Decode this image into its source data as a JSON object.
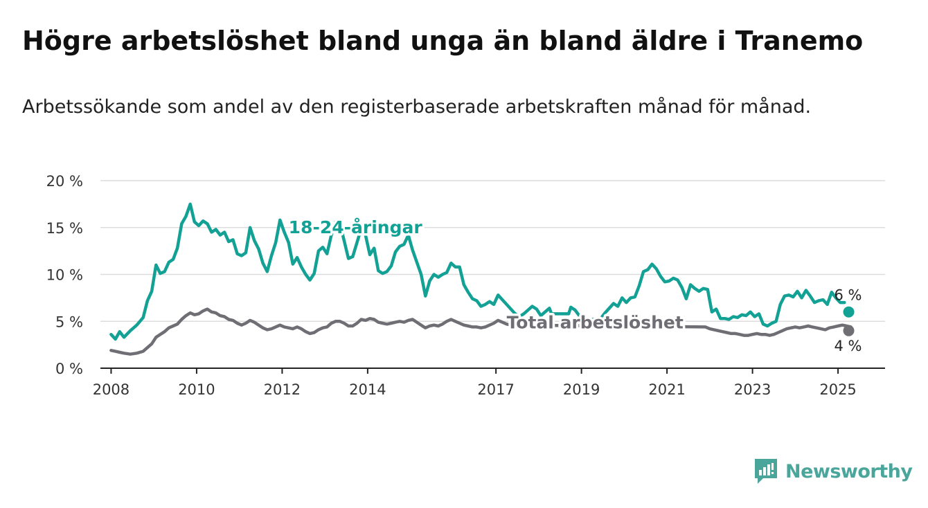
{
  "title": "Högre arbetslöshet bland unga än bland äldre i Tranemo",
  "subtitle": "Arbetssökande som andel av den registerbaserade arbetskraften månad för månad.",
  "brand": {
    "name": "Newsworthy",
    "icon": "newsworthy-logo-icon",
    "color": "#4aa69a"
  },
  "chart_data": {
    "type": "line",
    "y_ticks": [
      "0 %",
      "5 %",
      "10 %",
      "15 %",
      "20 %"
    ],
    "y_tick_values": [
      0,
      5,
      10,
      15,
      20
    ],
    "ylim": [
      0,
      20
    ],
    "x_ticks": [
      "2008",
      "2010",
      "2012",
      "2014",
      "2017",
      "2019",
      "2021",
      "2023",
      "2025"
    ],
    "x_tick_values": [
      2008,
      2010,
      2012,
      2014,
      2017,
      2019,
      2021,
      2023,
      2025
    ],
    "xlim": [
      2007.75,
      2026.1
    ],
    "grid": true,
    "series": [
      {
        "name": "18-24-åringar",
        "color": "#13a195",
        "end_label": "6 %",
        "points": [
          [
            2008.0,
            3.6
          ],
          [
            2008.1,
            3.1
          ],
          [
            2008.2,
            3.9
          ],
          [
            2008.3,
            3.3
          ],
          [
            2008.45,
            4.0
          ],
          [
            2008.6,
            4.6
          ],
          [
            2008.75,
            5.4
          ],
          [
            2008.85,
            7.2
          ],
          [
            2008.95,
            8.2
          ],
          [
            2009.05,
            11.0
          ],
          [
            2009.15,
            10.1
          ],
          [
            2009.25,
            10.3
          ],
          [
            2009.35,
            11.3
          ],
          [
            2009.45,
            11.6
          ],
          [
            2009.55,
            12.8
          ],
          [
            2009.65,
            15.4
          ],
          [
            2009.75,
            16.2
          ],
          [
            2009.85,
            17.5
          ],
          [
            2009.95,
            15.6
          ],
          [
            2010.05,
            15.2
          ],
          [
            2010.15,
            15.7
          ],
          [
            2010.25,
            15.4
          ],
          [
            2010.35,
            14.5
          ],
          [
            2010.45,
            14.8
          ],
          [
            2010.55,
            14.2
          ],
          [
            2010.65,
            14.5
          ],
          [
            2010.75,
            13.5
          ],
          [
            2010.85,
            13.7
          ],
          [
            2010.95,
            12.2
          ],
          [
            2011.05,
            12.0
          ],
          [
            2011.15,
            12.3
          ],
          [
            2011.25,
            15.0
          ],
          [
            2011.35,
            13.6
          ],
          [
            2011.45,
            12.7
          ],
          [
            2011.55,
            11.2
          ],
          [
            2011.65,
            10.3
          ],
          [
            2011.75,
            12.0
          ],
          [
            2011.85,
            13.4
          ],
          [
            2011.95,
            15.8
          ],
          [
            2012.05,
            14.5
          ],
          [
            2012.15,
            13.4
          ],
          [
            2012.25,
            11.1
          ],
          [
            2012.35,
            11.8
          ],
          [
            2012.45,
            10.8
          ],
          [
            2012.55,
            10.0
          ],
          [
            2012.65,
            9.4
          ],
          [
            2012.75,
            10.1
          ],
          [
            2012.85,
            12.5
          ],
          [
            2012.95,
            12.9
          ],
          [
            2013.05,
            12.2
          ],
          [
            2013.15,
            14.2
          ],
          [
            2013.25,
            15.6
          ],
          [
            2013.35,
            15.4
          ],
          [
            2013.45,
            13.6
          ],
          [
            2013.55,
            11.7
          ],
          [
            2013.65,
            11.9
          ],
          [
            2013.75,
            13.4
          ],
          [
            2013.85,
            14.9
          ],
          [
            2013.95,
            14.2
          ],
          [
            2014.05,
            12.1
          ],
          [
            2014.15,
            12.8
          ],
          [
            2014.25,
            10.4
          ],
          [
            2014.35,
            10.1
          ],
          [
            2014.45,
            10.3
          ],
          [
            2014.55,
            10.9
          ],
          [
            2014.65,
            12.4
          ],
          [
            2014.75,
            13.0
          ],
          [
            2014.85,
            13.2
          ],
          [
            2014.95,
            14.2
          ],
          [
            2015.05,
            12.6
          ],
          [
            2015.15,
            11.3
          ],
          [
            2015.25,
            10.0
          ],
          [
            2015.35,
            7.7
          ],
          [
            2015.45,
            9.3
          ],
          [
            2015.55,
            10.0
          ],
          [
            2015.65,
            9.7
          ],
          [
            2015.75,
            10.0
          ],
          [
            2015.85,
            10.2
          ],
          [
            2015.95,
            11.2
          ],
          [
            2016.05,
            10.8
          ],
          [
            2016.15,
            10.8
          ],
          [
            2016.25,
            8.9
          ],
          [
            2016.35,
            8.1
          ],
          [
            2016.45,
            7.4
          ],
          [
            2016.55,
            7.2
          ],
          [
            2016.65,
            6.6
          ],
          [
            2016.75,
            6.8
          ],
          [
            2016.85,
            7.1
          ],
          [
            2016.95,
            6.8
          ],
          [
            2017.05,
            7.8
          ],
          [
            2017.15,
            7.3
          ],
          [
            2017.25,
            6.8
          ],
          [
            2017.35,
            6.3
          ],
          [
            2017.45,
            5.8
          ],
          [
            2017.55,
            5.5
          ],
          [
            2017.65,
            5.8
          ],
          [
            2017.75,
            6.2
          ],
          [
            2017.85,
            6.6
          ],
          [
            2017.95,
            6.3
          ],
          [
            2018.05,
            5.6
          ],
          [
            2018.15,
            6.0
          ],
          [
            2018.25,
            6.4
          ],
          [
            2018.3,
            5.8
          ],
          [
            2018.7,
            5.8
          ],
          [
            2018.75,
            6.5
          ],
          [
            2018.85,
            6.2
          ],
          [
            2018.95,
            5.6
          ],
          [
            2019.05,
            5.1
          ],
          [
            2019.45,
            5.3
          ],
          [
            2019.55,
            5.9
          ],
          [
            2019.65,
            6.4
          ],
          [
            2019.75,
            6.9
          ],
          [
            2019.85,
            6.6
          ],
          [
            2019.95,
            7.5
          ],
          [
            2020.05,
            7.0
          ],
          [
            2020.15,
            7.5
          ],
          [
            2020.25,
            7.6
          ],
          [
            2020.35,
            8.8
          ],
          [
            2020.45,
            10.3
          ],
          [
            2020.55,
            10.5
          ],
          [
            2020.65,
            11.1
          ],
          [
            2020.75,
            10.6
          ],
          [
            2020.85,
            9.8
          ],
          [
            2020.95,
            9.2
          ],
          [
            2021.05,
            9.3
          ],
          [
            2021.15,
            9.6
          ],
          [
            2021.25,
            9.4
          ],
          [
            2021.35,
            8.6
          ],
          [
            2021.45,
            7.4
          ],
          [
            2021.55,
            8.9
          ],
          [
            2021.65,
            8.5
          ],
          [
            2021.75,
            8.2
          ],
          [
            2021.85,
            8.5
          ],
          [
            2021.95,
            8.4
          ],
          [
            2022.05,
            6.0
          ],
          [
            2022.15,
            6.3
          ],
          [
            2022.25,
            5.3
          ],
          [
            2022.35,
            5.3
          ],
          [
            2022.45,
            5.2
          ],
          [
            2022.55,
            5.5
          ],
          [
            2022.65,
            5.4
          ],
          [
            2022.75,
            5.7
          ],
          [
            2022.85,
            5.6
          ],
          [
            2022.95,
            6.0
          ],
          [
            2023.05,
            5.5
          ],
          [
            2023.15,
            5.8
          ],
          [
            2023.25,
            4.7
          ],
          [
            2023.35,
            4.5
          ],
          [
            2023.45,
            4.8
          ],
          [
            2023.55,
            5.0
          ],
          [
            2023.65,
            6.8
          ],
          [
            2023.75,
            7.7
          ],
          [
            2023.85,
            7.8
          ],
          [
            2023.95,
            7.6
          ],
          [
            2024.05,
            8.2
          ],
          [
            2024.15,
            7.5
          ],
          [
            2024.25,
            8.3
          ],
          [
            2024.35,
            7.7
          ],
          [
            2024.45,
            7.0
          ],
          [
            2024.55,
            7.2
          ],
          [
            2024.65,
            7.3
          ],
          [
            2024.75,
            6.8
          ],
          [
            2024.85,
            8.1
          ],
          [
            2024.95,
            7.5
          ],
          [
            2025.05,
            7.0
          ],
          [
            2025.15,
            7.0
          ]
        ]
      },
      {
        "name": "Total arbetslöshet",
        "color": "#6f6e74",
        "end_label": "4 %",
        "points": [
          [
            2008.0,
            1.9
          ],
          [
            2008.1,
            1.8
          ],
          [
            2008.2,
            1.7
          ],
          [
            2008.3,
            1.6
          ],
          [
            2008.45,
            1.5
          ],
          [
            2008.6,
            1.6
          ],
          [
            2008.75,
            1.8
          ],
          [
            2008.85,
            2.2
          ],
          [
            2008.95,
            2.6
          ],
          [
            2009.05,
            3.3
          ],
          [
            2009.15,
            3.6
          ],
          [
            2009.25,
            3.9
          ],
          [
            2009.35,
            4.3
          ],
          [
            2009.45,
            4.5
          ],
          [
            2009.55,
            4.7
          ],
          [
            2009.65,
            5.2
          ],
          [
            2009.75,
            5.6
          ],
          [
            2009.85,
            5.9
          ],
          [
            2009.95,
            5.7
          ],
          [
            2010.05,
            5.8
          ],
          [
            2010.15,
            6.1
          ],
          [
            2010.25,
            6.3
          ],
          [
            2010.35,
            6.0
          ],
          [
            2010.45,
            5.9
          ],
          [
            2010.55,
            5.6
          ],
          [
            2010.65,
            5.5
          ],
          [
            2010.75,
            5.2
          ],
          [
            2010.85,
            5.1
          ],
          [
            2010.95,
            4.8
          ],
          [
            2011.05,
            4.6
          ],
          [
            2011.15,
            4.8
          ],
          [
            2011.25,
            5.1
          ],
          [
            2011.35,
            4.9
          ],
          [
            2011.45,
            4.6
          ],
          [
            2011.55,
            4.3
          ],
          [
            2011.65,
            4.1
          ],
          [
            2011.75,
            4.2
          ],
          [
            2011.85,
            4.4
          ],
          [
            2011.95,
            4.6
          ],
          [
            2012.05,
            4.4
          ],
          [
            2012.15,
            4.3
          ],
          [
            2012.25,
            4.2
          ],
          [
            2012.35,
            4.4
          ],
          [
            2012.45,
            4.2
          ],
          [
            2012.55,
            3.9
          ],
          [
            2012.65,
            3.7
          ],
          [
            2012.75,
            3.8
          ],
          [
            2012.85,
            4.1
          ],
          [
            2012.95,
            4.3
          ],
          [
            2013.05,
            4.4
          ],
          [
            2013.15,
            4.8
          ],
          [
            2013.25,
            5.0
          ],
          [
            2013.35,
            5.0
          ],
          [
            2013.45,
            4.8
          ],
          [
            2013.55,
            4.5
          ],
          [
            2013.65,
            4.5
          ],
          [
            2013.75,
            4.8
          ],
          [
            2013.85,
            5.2
          ],
          [
            2013.95,
            5.1
          ],
          [
            2014.05,
            5.3
          ],
          [
            2014.15,
            5.2
          ],
          [
            2014.25,
            4.9
          ],
          [
            2014.35,
            4.8
          ],
          [
            2014.45,
            4.7
          ],
          [
            2014.55,
            4.8
          ],
          [
            2014.65,
            4.9
          ],
          [
            2014.75,
            5.0
          ],
          [
            2014.85,
            4.9
          ],
          [
            2014.95,
            5.1
          ],
          [
            2015.05,
            5.2
          ],
          [
            2015.15,
            4.9
          ],
          [
            2015.25,
            4.6
          ],
          [
            2015.35,
            4.3
          ],
          [
            2015.45,
            4.5
          ],
          [
            2015.55,
            4.6
          ],
          [
            2015.65,
            4.5
          ],
          [
            2015.75,
            4.7
          ],
          [
            2015.85,
            5.0
          ],
          [
            2015.95,
            5.2
          ],
          [
            2016.05,
            5.0
          ],
          [
            2016.15,
            4.8
          ],
          [
            2016.25,
            4.6
          ],
          [
            2016.35,
            4.5
          ],
          [
            2016.45,
            4.4
          ],
          [
            2016.55,
            4.4
          ],
          [
            2016.65,
            4.3
          ],
          [
            2016.75,
            4.4
          ],
          [
            2016.85,
            4.6
          ],
          [
            2016.95,
            4.8
          ],
          [
            2017.05,
            5.1
          ],
          [
            2017.15,
            4.9
          ],
          [
            2017.25,
            4.7
          ],
          [
            2017.35,
            4.6
          ],
          [
            2021.9,
            4.4
          ],
          [
            2022.0,
            4.2
          ],
          [
            2022.1,
            4.1
          ],
          [
            2022.2,
            4.0
          ],
          [
            2022.3,
            3.9
          ],
          [
            2022.4,
            3.8
          ],
          [
            2022.5,
            3.7
          ],
          [
            2022.6,
            3.7
          ],
          [
            2022.7,
            3.6
          ],
          [
            2022.8,
            3.5
          ],
          [
            2022.9,
            3.5
          ],
          [
            2023.0,
            3.6
          ],
          [
            2023.1,
            3.7
          ],
          [
            2023.2,
            3.6
          ],
          [
            2023.3,
            3.6
          ],
          [
            2023.4,
            3.5
          ],
          [
            2023.5,
            3.6
          ],
          [
            2023.6,
            3.8
          ],
          [
            2023.7,
            4.0
          ],
          [
            2023.8,
            4.2
          ],
          [
            2023.9,
            4.3
          ],
          [
            2024.0,
            4.4
          ],
          [
            2024.1,
            4.3
          ],
          [
            2024.2,
            4.4
          ],
          [
            2024.3,
            4.5
          ],
          [
            2024.4,
            4.4
          ],
          [
            2024.5,
            4.3
          ],
          [
            2024.6,
            4.2
          ],
          [
            2024.7,
            4.1
          ],
          [
            2024.8,
            4.3
          ],
          [
            2024.9,
            4.4
          ],
          [
            2025.0,
            4.5
          ],
          [
            2025.1,
            4.6
          ],
          [
            2025.2,
            4.5
          ],
          [
            2025.3,
            4.4
          ]
        ]
      }
    ],
    "end_markers": [
      {
        "series": "18-24-åringar",
        "x": 2025.25,
        "y": 6.0,
        "label": "6 %"
      },
      {
        "series": "Total arbetslöshet",
        "x": 2025.25,
        "y": 4.0,
        "label": "4 %"
      }
    ]
  }
}
